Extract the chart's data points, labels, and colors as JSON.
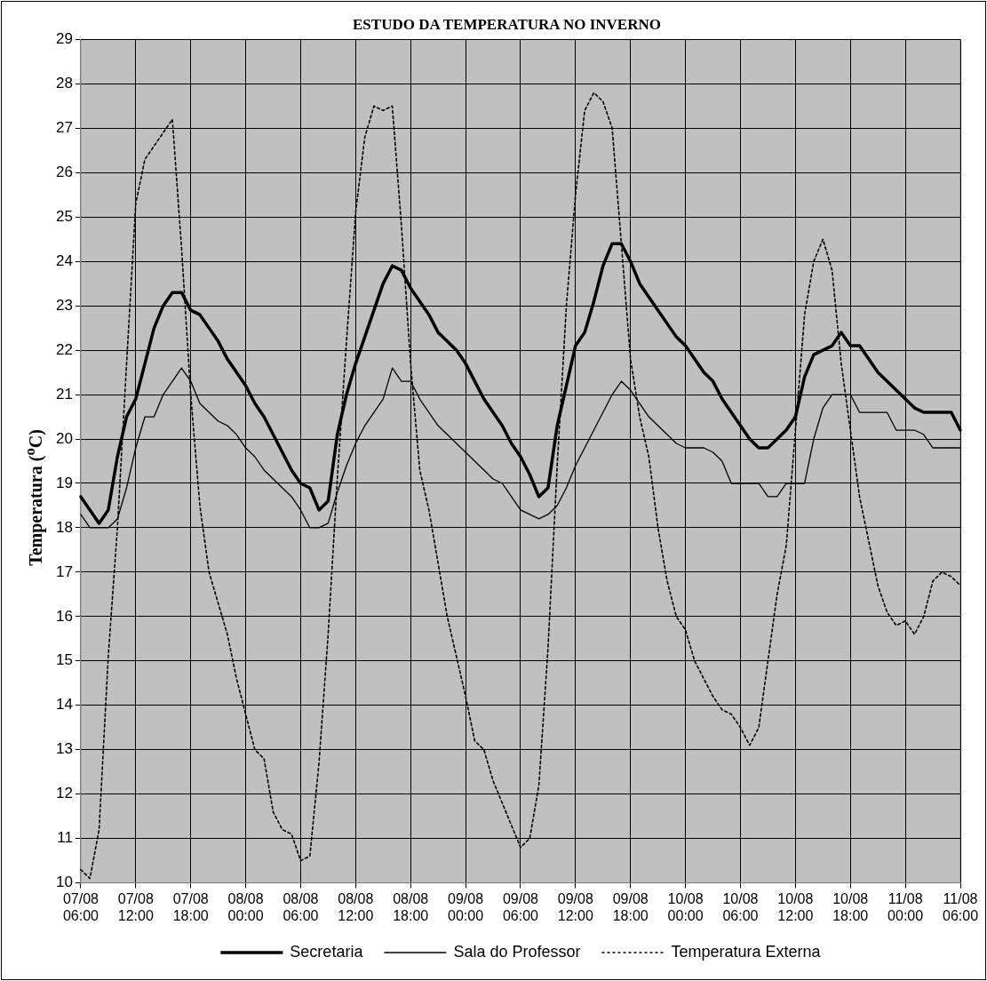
{
  "chart_data": {
    "type": "line",
    "title": "ESTUDO DA TEMPERATURA NO INVERNO",
    "ylabel": "Temperatura ($^{o}$C)",
    "categories": [
      "07/08 06:00",
      null,
      null,
      null,
      null,
      null,
      "07/08 12:00",
      null,
      null,
      null,
      null,
      null,
      "07/08 18:00",
      null,
      null,
      null,
      null,
      null,
      "08/08 00:00",
      null,
      null,
      null,
      null,
      null,
      "08/08 06:00",
      null,
      null,
      null,
      null,
      null,
      "08/08 12:00",
      null,
      null,
      null,
      null,
      null,
      "08/08 18:00",
      null,
      null,
      null,
      null,
      null,
      "09/08 00:00",
      null,
      null,
      null,
      null,
      null,
      "09/08 06:00",
      null,
      null,
      null,
      null,
      null,
      "09/08 12:00",
      null,
      null,
      null,
      null,
      null,
      "09/08 18:00",
      null,
      null,
      null,
      null,
      null,
      "10/08 00:00",
      null,
      null,
      null,
      null,
      null,
      "10/08 06:00",
      null,
      null,
      null,
      null,
      null,
      "10/08 12:00",
      null,
      null,
      null,
      null,
      null,
      "10/08 18:00",
      null,
      null,
      null,
      null,
      null,
      "11/08 00:00",
      null,
      null,
      null,
      null,
      null,
      "11/08 06:00"
    ],
    "ylim": [
      10,
      29
    ],
    "yticks": [
      10,
      11,
      12,
      13,
      14,
      15,
      16,
      17,
      18,
      19,
      20,
      21,
      22,
      23,
      24,
      25,
      26,
      27,
      28,
      29
    ],
    "grid": true,
    "legend": "bottom",
    "marker": "none",
    "series": [
      {
        "name": "Secretaria",
        "color": "#000000",
        "line_style": "solid",
        "values": [
          18.7,
          18.4,
          18.1,
          18.4,
          19.6,
          20.5,
          20.9,
          21.7,
          22.5,
          23.0,
          23.3,
          23.3,
          22.9,
          22.8,
          22.5,
          22.2,
          21.8,
          21.5,
          21.2,
          20.8,
          20.5,
          20.1,
          19.7,
          19.3,
          19.0,
          18.9,
          18.4,
          18.6,
          20.1,
          21.0,
          21.7,
          22.3,
          22.9,
          23.5,
          23.9,
          23.8,
          23.4,
          23.1,
          22.8,
          22.4,
          22.2,
          22.0,
          21.7,
          21.3,
          20.9,
          20.6,
          20.3,
          19.9,
          19.6,
          19.2,
          18.7,
          18.9,
          20.3,
          21.2,
          22.1,
          22.4,
          23.1,
          23.9,
          24.4,
          24.4,
          24.0,
          23.5,
          23.2,
          22.9,
          22.6,
          22.3,
          22.1,
          21.8,
          21.5,
          21.3,
          20.9,
          20.6,
          20.3,
          20.0,
          19.8,
          19.8,
          20.0,
          20.2,
          20.5,
          21.4,
          21.9,
          22.0,
          22.1,
          22.4,
          22.1,
          22.1,
          21.8,
          21.5,
          21.3,
          21.1,
          20.9,
          20.7,
          20.6,
          20.6,
          20.6,
          20.6,
          20.2
        ]
      },
      {
        "name": "Sala do Professor",
        "color": "#000000",
        "line_style": "solid",
        "values": [
          18.3,
          18.0,
          18.0,
          18.0,
          18.2,
          18.9,
          19.8,
          20.5,
          20.5,
          21.0,
          21.3,
          21.6,
          21.3,
          20.8,
          20.6,
          20.4,
          20.3,
          20.1,
          19.8,
          19.6,
          19.3,
          19.1,
          18.9,
          18.7,
          18.4,
          18.0,
          18.0,
          18.1,
          18.8,
          19.4,
          19.9,
          20.3,
          20.6,
          20.9,
          21.6,
          21.3,
          21.3,
          20.9,
          20.6,
          20.3,
          20.1,
          19.9,
          19.7,
          19.5,
          19.3,
          19.1,
          19.0,
          18.7,
          18.4,
          18.3,
          18.2,
          18.3,
          18.5,
          18.9,
          19.4,
          19.8,
          20.2,
          20.6,
          21.0,
          21.3,
          21.1,
          20.8,
          20.5,
          20.3,
          20.1,
          19.9,
          19.8,
          19.8,
          19.8,
          19.7,
          19.5,
          19.0,
          19.0,
          19.0,
          19.0,
          18.7,
          18.7,
          19.0,
          19.0,
          19.0,
          20.0,
          20.7,
          21.0,
          21.0,
          21.0,
          20.6,
          20.6,
          20.6,
          20.6,
          20.2,
          20.2,
          20.2,
          20.1,
          19.8,
          19.8,
          19.8,
          19.8
        ]
      },
      {
        "name": "Temperatura Externa",
        "color": "#000000",
        "line_style": "dotted",
        "values": [
          10.3,
          10.1,
          11.2,
          15.1,
          18.0,
          21.7,
          25.3,
          26.3,
          26.6,
          26.9,
          27.2,
          24.3,
          21.0,
          18.5,
          17.0,
          16.3,
          15.6,
          14.6,
          13.8,
          13.0,
          12.8,
          11.6,
          11.2,
          11.1,
          10.5,
          10.6,
          12.7,
          15.6,
          19.1,
          22.2,
          25.1,
          26.8,
          27.5,
          27.4,
          27.5,
          24.8,
          21.7,
          19.3,
          18.4,
          17.2,
          16.0,
          15.1,
          14.2,
          13.2,
          13.0,
          12.3,
          11.8,
          11.3,
          10.8,
          11.0,
          12.2,
          15.3,
          19.4,
          23.0,
          25.5,
          27.4,
          27.8,
          27.6,
          27.0,
          24.4,
          21.8,
          20.5,
          19.6,
          18.0,
          16.8,
          16.0,
          15.7,
          15.0,
          14.6,
          14.2,
          13.9,
          13.8,
          13.5,
          13.1,
          13.5,
          15.0,
          16.5,
          17.6,
          20.2,
          22.8,
          24.0,
          24.5,
          23.8,
          21.7,
          20.2,
          18.7,
          17.7,
          16.7,
          16.1,
          15.8,
          15.9,
          15.6,
          16.0,
          16.8,
          17.0,
          16.9,
          16.7
        ]
      }
    ]
  }
}
